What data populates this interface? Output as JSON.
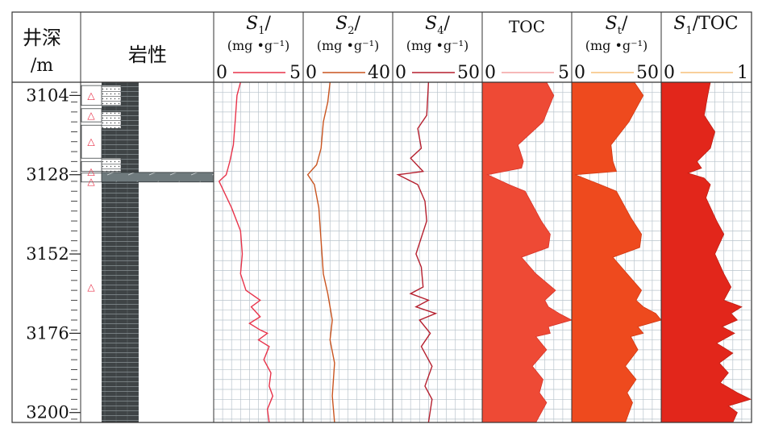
{
  "header": {
    "depth_label_1": "井深",
    "depth_label_2": "/m",
    "lithology_label": "岩性"
  },
  "depth_axis": {
    "range": [
      3100,
      3203
    ],
    "major_ticks": [
      3104,
      3128,
      3152,
      3176,
      3200
    ],
    "minor_step": 3
  },
  "colors": {
    "s1_line": "#e8334a",
    "s2_line": "#c9541f",
    "s4_line": "#b51f2e",
    "toc_fill": "#ee4a35",
    "toc_legend": "#f4a0a0",
    "st_fill": "#ee4a1e",
    "st_legend": "#f7c07a",
    "ratio_fill": "#e2261b",
    "ratio_legend": "#f7c07a",
    "grid": "#b9c4cc",
    "rock": "#3f4446",
    "marker": "#e8334a"
  },
  "lithology": {
    "mudstone_intervals": [
      [
        3101,
        3109
      ],
      [
        3114,
        3123
      ],
      [
        3126.5,
        3200
      ]
    ],
    "silty_intervals": [
      [
        3101,
        3107
      ],
      [
        3109,
        3114
      ],
      [
        3123,
        3127
      ],
      [
        3127,
        3130
      ]
    ],
    "limestone_band": [
      3127.3,
      3130.2
    ],
    "marker_symbol": "△",
    "markers_depths": [
      3104,
      3110,
      3118,
      3127,
      3130,
      3162
    ]
  },
  "chart_data": {
    "type": "line",
    "depth_unit": "m",
    "ylim": [
      3100,
      3203
    ],
    "tracks": [
      {
        "key": "s1",
        "title_main": "S",
        "title_sub": "1",
        "title_tail": "/",
        "unit": "(mg •g⁻¹)",
        "range_min": "0",
        "range_max": "5",
        "xlim": [
          0,
          5
        ],
        "style": "line",
        "points": [
          [
            1.5,
            3100
          ],
          [
            1.3,
            3104
          ],
          [
            1.2,
            3112
          ],
          [
            1.1,
            3119
          ],
          [
            0.9,
            3124
          ],
          [
            0.8,
            3126
          ],
          [
            0.7,
            3128
          ],
          [
            0.3,
            3130
          ],
          [
            1.0,
            3138
          ],
          [
            1.5,
            3145
          ],
          [
            1.6,
            3152
          ],
          [
            1.5,
            3158
          ],
          [
            1.8,
            3163
          ],
          [
            2.6,
            3166
          ],
          [
            2.1,
            3168
          ],
          [
            2.6,
            3171
          ],
          [
            2.0,
            3173
          ],
          [
            2.6,
            3175
          ],
          [
            3.0,
            3176
          ],
          [
            2.5,
            3178
          ],
          [
            3.1,
            3180
          ],
          [
            2.8,
            3184
          ],
          [
            3.2,
            3188
          ],
          [
            3.1,
            3192
          ],
          [
            3.3,
            3195
          ],
          [
            3.0,
            3199
          ],
          [
            3.1,
            3203
          ]
        ]
      },
      {
        "key": "s2",
        "title_main": "S",
        "title_sub": "2",
        "title_tail": "/",
        "unit": "(mg •g⁻¹)",
        "range_min": "0",
        "range_max": "40",
        "xlim": [
          0,
          40
        ],
        "style": "line",
        "points": [
          [
            12,
            3100
          ],
          [
            11,
            3106
          ],
          [
            9,
            3112
          ],
          [
            8,
            3120
          ],
          [
            6,
            3125
          ],
          [
            2,
            3128
          ],
          [
            5,
            3131
          ],
          [
            7,
            3138
          ],
          [
            8,
            3148
          ],
          [
            9,
            3158
          ],
          [
            11,
            3164
          ],
          [
            12,
            3168
          ],
          [
            13,
            3172
          ],
          [
            12,
            3178
          ],
          [
            14,
            3185
          ],
          [
            13,
            3195
          ],
          [
            14,
            3203
          ]
        ]
      },
      {
        "key": "s4",
        "title_main": "S",
        "title_sub": "4",
        "title_tail": "/",
        "unit": "(mg •g⁻¹)",
        "range_min": "0",
        "range_max": "50",
        "xlim": [
          0,
          50
        ],
        "style": "line",
        "points": [
          [
            20,
            3100
          ],
          [
            19,
            3110
          ],
          [
            14,
            3114
          ],
          [
            16,
            3120
          ],
          [
            10,
            3123
          ],
          [
            17,
            3127
          ],
          [
            3,
            3128
          ],
          [
            14,
            3131
          ],
          [
            18,
            3136
          ],
          [
            19,
            3142
          ],
          [
            13,
            3152
          ],
          [
            16,
            3156
          ],
          [
            17,
            3162
          ],
          [
            10,
            3164
          ],
          [
            20,
            3166
          ],
          [
            13,
            3168
          ],
          [
            24,
            3170
          ],
          [
            15,
            3172
          ],
          [
            21,
            3176
          ],
          [
            16,
            3180
          ],
          [
            22,
            3186
          ],
          [
            18,
            3192
          ],
          [
            22,
            3196
          ],
          [
            20,
            3203
          ]
        ]
      },
      {
        "key": "toc",
        "title_main": "TOC",
        "title_sub": "",
        "title_tail": "",
        "unit": "",
        "range_min": "0",
        "range_max": "5",
        "xlim": [
          0,
          5
        ],
        "style": "fill",
        "points": [
          [
            3.6,
            3100
          ],
          [
            4.0,
            3104
          ],
          [
            3.4,
            3112
          ],
          [
            2.0,
            3119
          ],
          [
            2.3,
            3124
          ],
          [
            2.2,
            3126
          ],
          [
            0.3,
            3128
          ],
          [
            1.5,
            3131
          ],
          [
            2.4,
            3133
          ],
          [
            3.3,
            3142
          ],
          [
            3.8,
            3146
          ],
          [
            3.7,
            3150
          ],
          [
            2.2,
            3153
          ],
          [
            3.0,
            3158
          ],
          [
            4.1,
            3163
          ],
          [
            3.5,
            3166
          ],
          [
            3.7,
            3168
          ],
          [
            4.3,
            3170
          ],
          [
            5.0,
            3172
          ],
          [
            3.7,
            3174
          ],
          [
            3.8,
            3176
          ],
          [
            3.0,
            3177
          ],
          [
            3.6,
            3181
          ],
          [
            2.8,
            3186
          ],
          [
            3.4,
            3190
          ],
          [
            3.2,
            3194
          ],
          [
            3.6,
            3197
          ],
          [
            3.0,
            3203
          ]
        ]
      },
      {
        "key": "st",
        "title_main": "S",
        "title_sub": "t",
        "title_tail": "/",
        "unit": "(mg •g⁻¹)",
        "range_min": "0",
        "range_max": "50",
        "xlim": [
          0,
          50
        ],
        "style": "fill",
        "points": [
          [
            35,
            3100
          ],
          [
            40,
            3104
          ],
          [
            32,
            3112
          ],
          [
            22,
            3119
          ],
          [
            23,
            3124
          ],
          [
            25,
            3127
          ],
          [
            2,
            3128
          ],
          [
            16,
            3131
          ],
          [
            25,
            3133
          ],
          [
            33,
            3141
          ],
          [
            39,
            3146
          ],
          [
            38,
            3150
          ],
          [
            23,
            3153
          ],
          [
            31,
            3158
          ],
          [
            39,
            3163
          ],
          [
            36,
            3166
          ],
          [
            40,
            3168
          ],
          [
            47,
            3170
          ],
          [
            50,
            3172
          ],
          [
            37,
            3174
          ],
          [
            40,
            3176
          ],
          [
            33,
            3177
          ],
          [
            37,
            3181
          ],
          [
            30,
            3186
          ],
          [
            36,
            3190
          ],
          [
            31,
            3194
          ],
          [
            34,
            3197
          ],
          [
            30,
            3203
          ]
        ]
      },
      {
        "key": "ratio",
        "title_main": "S",
        "title_sub": "1",
        "title_tail": "/TOC",
        "unit": "",
        "range_min": "0",
        "range_max": "1",
        "xlim": [
          0,
          1
        ],
        "style": "fill",
        "points": [
          [
            0.55,
            3100
          ],
          [
            0.52,
            3104
          ],
          [
            0.48,
            3110
          ],
          [
            0.6,
            3115
          ],
          [
            0.55,
            3120
          ],
          [
            0.4,
            3124
          ],
          [
            0.45,
            3126
          ],
          [
            0.3,
            3127.5
          ],
          [
            0.48,
            3129
          ],
          [
            0.55,
            3131
          ],
          [
            0.5,
            3135
          ],
          [
            0.62,
            3142
          ],
          [
            0.7,
            3146
          ],
          [
            0.6,
            3152
          ],
          [
            0.7,
            3158
          ],
          [
            0.78,
            3162
          ],
          [
            0.7,
            3166
          ],
          [
            0.9,
            3168
          ],
          [
            0.78,
            3170
          ],
          [
            0.85,
            3172
          ],
          [
            0.68,
            3174
          ],
          [
            0.82,
            3176
          ],
          [
            0.62,
            3179
          ],
          [
            0.8,
            3182
          ],
          [
            0.65,
            3185
          ],
          [
            0.75,
            3188
          ],
          [
            0.66,
            3191
          ],
          [
            0.85,
            3194
          ],
          [
            1.0,
            3196
          ],
          [
            0.75,
            3198
          ],
          [
            0.85,
            3200
          ],
          [
            0.8,
            3203
          ]
        ]
      }
    ]
  }
}
